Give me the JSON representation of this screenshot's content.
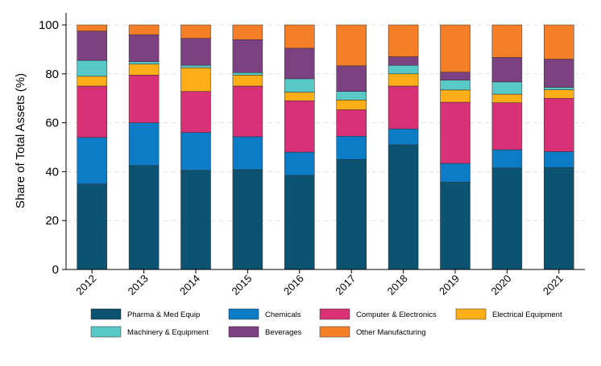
{
  "chart_data": {
    "type": "bar",
    "stacked": true,
    "ylabel": "Share of Total Assets (%)",
    "xlabel": "",
    "ylim": [
      0,
      100
    ],
    "yticks": [
      0,
      20,
      40,
      60,
      80,
      100
    ],
    "grid": "horizontal dashed",
    "legend_position": "bottom",
    "categories": [
      "2012",
      "2013",
      "2014",
      "2015",
      "2016",
      "2017",
      "2018",
      "2019",
      "2020",
      "2021"
    ],
    "series": [
      {
        "name": "Pharma & Med Equip",
        "color": "#0b5370",
        "values": [
          35,
          42.5,
          40.5,
          40.8,
          38.5,
          45,
          51,
          35.7,
          41.5,
          41.7
        ]
      },
      {
        "name": "Chemicals",
        "color": "#0d7cc7",
        "values": [
          19,
          17.5,
          15.5,
          13.5,
          9.5,
          9.5,
          6.5,
          7.7,
          7.5,
          6.5
        ]
      },
      {
        "name": "Computer & Electronics",
        "color": "#d83178",
        "values": [
          21,
          19.5,
          16.8,
          20.7,
          21,
          10.8,
          17.5,
          25,
          19.2,
          21.8
        ]
      },
      {
        "name": "Electrical Equipment",
        "color": "#fbae18",
        "values": [
          4,
          4.5,
          9.7,
          4.5,
          3.5,
          4,
          5,
          5,
          3.5,
          3.5
        ]
      },
      {
        "name": "Machinery & Equipment",
        "color": "#58c9c6",
        "values": [
          6.5,
          1,
          1,
          1,
          5.5,
          3.5,
          3.5,
          4,
          5,
          1
        ]
      },
      {
        "name": "Beverages",
        "color": "#7c4180",
        "values": [
          12,
          11,
          11,
          13.5,
          12.5,
          10.5,
          3.5,
          3.3,
          10,
          11.5
        ]
      },
      {
        "name": "Other Manufacturing",
        "color": "#f57f26",
        "values": [
          2.5,
          4,
          5.5,
          6,
          9.5,
          16.7,
          13,
          19.3,
          13.3,
          14
        ]
      }
    ]
  }
}
